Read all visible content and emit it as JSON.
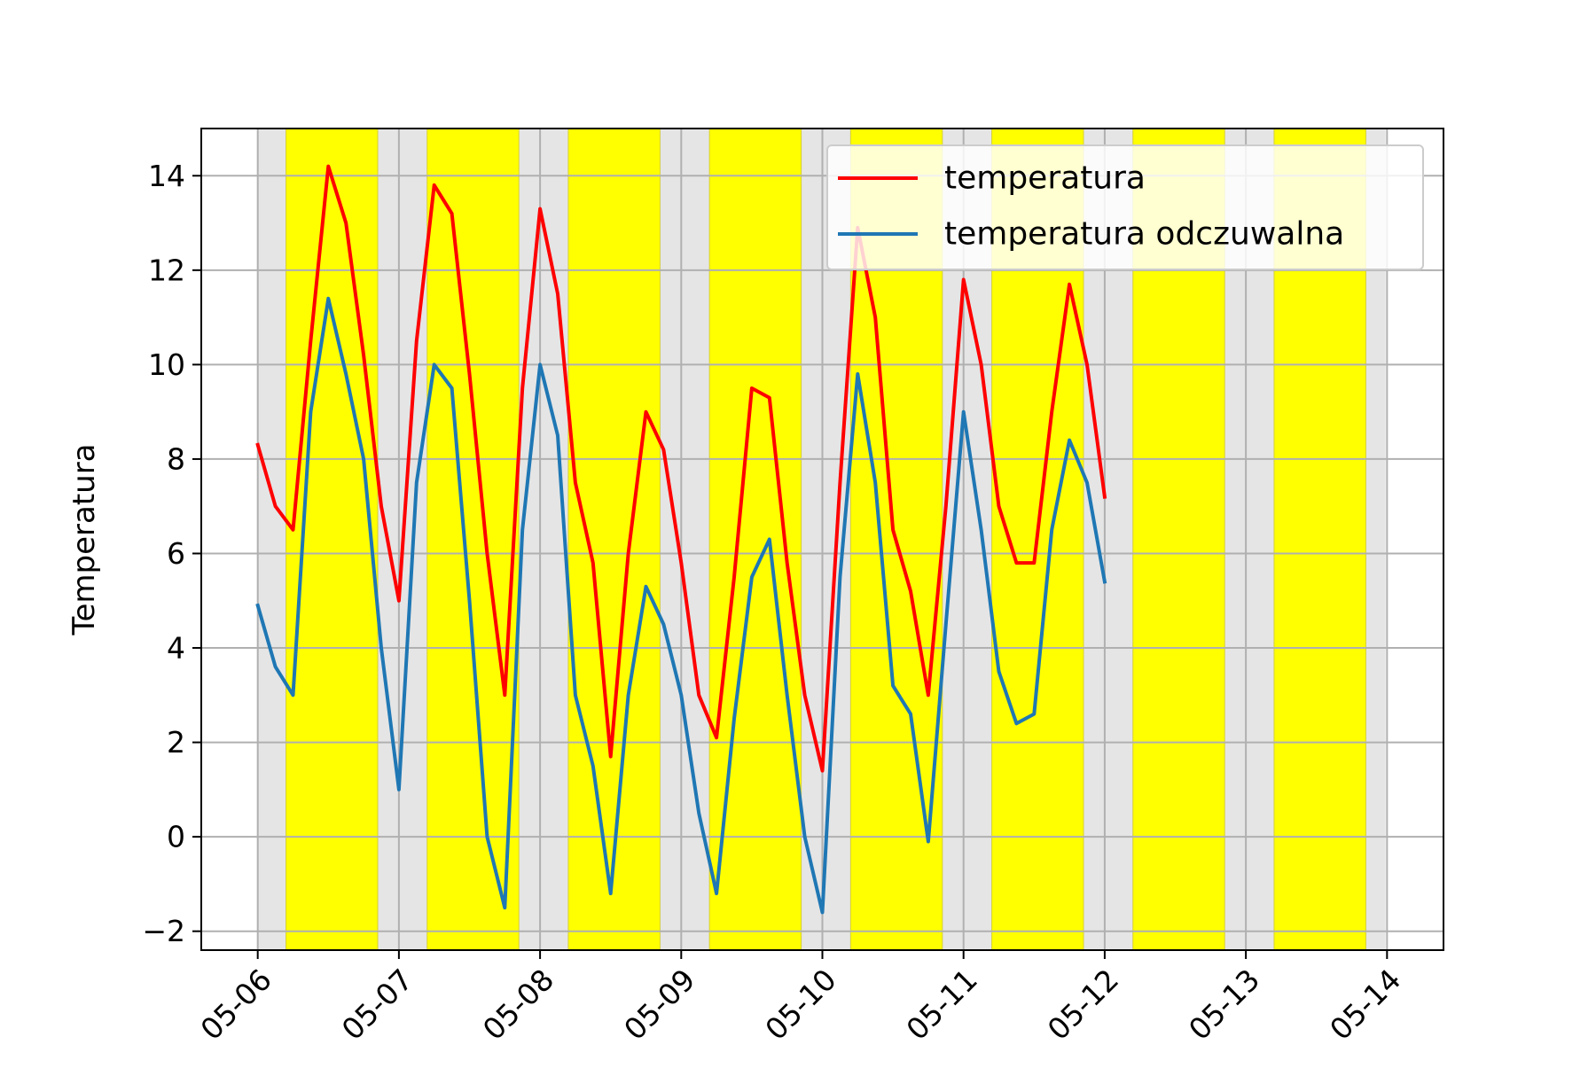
{
  "chart_data": {
    "type": "line",
    "title": "",
    "xlabel": "",
    "ylabel": "Temperatura",
    "x_start": "2020-05-06 00:00",
    "x_step_hours": 3,
    "x_ticks": [
      "05-06",
      "05-07",
      "05-08",
      "05-09",
      "05-10",
      "05-11",
      "05-12",
      "05-13",
      "05-14"
    ],
    "y_ticks": [
      -2,
      0,
      2,
      4,
      6,
      8,
      10,
      12,
      14
    ],
    "ylim": [
      -2.4,
      15
    ],
    "grid": true,
    "legend_position": "top-right",
    "series": [
      {
        "name": "temperatura",
        "color": "#ff0000",
        "values": [
          8.3,
          7.0,
          6.5,
          10.5,
          14.2,
          13.0,
          10.2,
          7.0,
          5.0,
          10.5,
          13.8,
          13.2,
          9.8,
          6.0,
          3.0,
          9.5,
          13.3,
          11.5,
          7.5,
          5.8,
          1.7,
          6.0,
          9.0,
          8.2,
          5.8,
          3.0,
          2.1,
          5.5,
          9.5,
          9.3,
          5.8,
          3.0,
          1.4,
          7.5,
          12.9,
          11.0,
          6.5,
          5.2,
          3.0,
          7.0,
          11.8,
          10.0,
          7.0,
          5.8,
          5.8,
          9.0,
          11.7,
          10.0,
          7.2
        ]
      },
      {
        "name": "temperatura odczuwalna",
        "color": "#1f77b4",
        "values": [
          4.9,
          3.6,
          3.0,
          9.0,
          11.4,
          9.8,
          8.0,
          4.0,
          1.0,
          7.5,
          10.0,
          9.5,
          5.0,
          0.0,
          -1.5,
          6.5,
          10.0,
          8.5,
          3.0,
          1.5,
          -1.2,
          3.0,
          5.3,
          4.5,
          3.0,
          0.5,
          -1.2,
          2.5,
          5.5,
          6.3,
          3.0,
          0.0,
          -1.6,
          5.5,
          9.8,
          7.5,
          3.2,
          2.6,
          -0.1,
          4.5,
          9.0,
          6.5,
          3.5,
          2.4,
          2.6,
          6.5,
          8.4,
          7.5,
          5.4
        ]
      }
    ],
    "bands": [
      {
        "type": "night",
        "color": "#e5e5e5",
        "ranges": [
          [
            0,
            0.2
          ],
          [
            0.85,
            1.2
          ],
          [
            1.85,
            2.2
          ],
          [
            2.85,
            3.2
          ],
          [
            3.85,
            4.2
          ],
          [
            4.85,
            5.2
          ],
          [
            5.85,
            6.2
          ],
          [
            6.85,
            7.2
          ],
          [
            7.85,
            7.99
          ]
        ]
      },
      {
        "type": "day",
        "color": "#ffff00",
        "ranges": [
          [
            0.2,
            0.85
          ],
          [
            1.2,
            1.85
          ],
          [
            2.2,
            2.85
          ],
          [
            3.2,
            3.85
          ],
          [
            4.2,
            4.85
          ],
          [
            5.2,
            5.85
          ],
          [
            6.2,
            6.85
          ],
          [
            7.2,
            7.85
          ]
        ]
      }
    ]
  }
}
